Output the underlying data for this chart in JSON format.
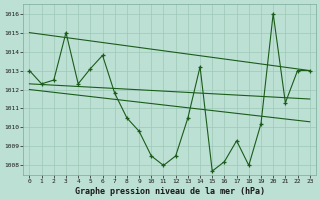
{
  "x": [
    0,
    1,
    2,
    3,
    4,
    5,
    6,
    7,
    8,
    9,
    10,
    11,
    12,
    13,
    14,
    15,
    16,
    17,
    18,
    19,
    20,
    21,
    22,
    23
  ],
  "y_main": [
    1013.0,
    1012.3,
    1012.5,
    1015.0,
    1012.3,
    1013.1,
    1013.8,
    1011.8,
    1010.5,
    1009.8,
    1008.5,
    1008.0,
    1008.5,
    1010.5,
    1013.2,
    1007.7,
    1008.2,
    1009.3,
    1008.0,
    1010.2,
    1016.0,
    1011.3,
    1013.0,
    1013.0
  ],
  "trend1_x": [
    0,
    23
  ],
  "trend1_y": [
    1015.0,
    1013.0
  ],
  "trend2_x": [
    0,
    23
  ],
  "trend2_y": [
    1012.3,
    1011.5
  ],
  "trend3_x": [
    0,
    23
  ],
  "trend3_y": [
    1012.0,
    1010.3
  ],
  "background_color": "#bde0d4",
  "grid_color": "#9dc8b8",
  "line_color": "#1a5c1a",
  "xlabel": "Graphe pression niveau de la mer (hPa)",
  "ylim": [
    1007.5,
    1016.5
  ],
  "xlim": [
    -0.5,
    23.5
  ],
  "yticks": [
    1008,
    1009,
    1010,
    1011,
    1012,
    1013,
    1014,
    1015,
    1016
  ],
  "xticks": [
    0,
    1,
    2,
    3,
    4,
    5,
    6,
    7,
    8,
    9,
    10,
    11,
    12,
    13,
    14,
    15,
    16,
    17,
    18,
    19,
    20,
    21,
    22,
    23
  ],
  "figwidth": 3.2,
  "figheight": 2.0,
  "dpi": 100
}
